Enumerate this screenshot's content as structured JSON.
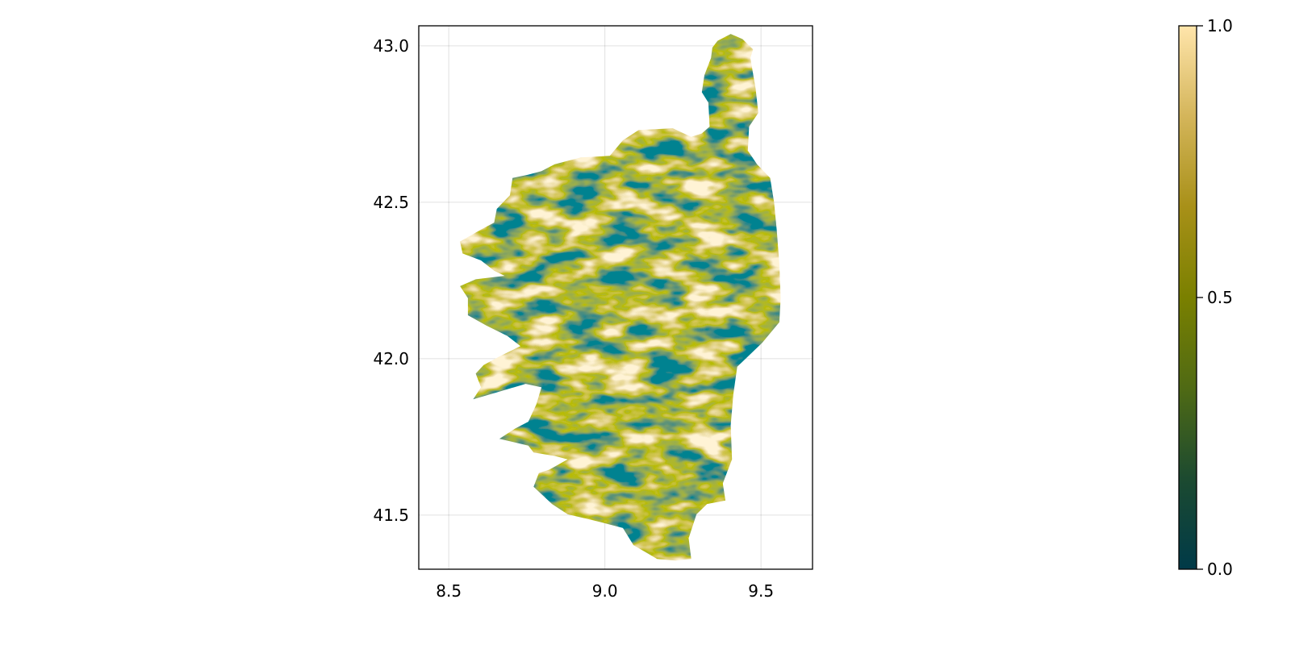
{
  "chart_data": {
    "type": "heatmap",
    "title": "",
    "xlabel": "",
    "ylabel": "",
    "xlim": [
      8.404,
      9.665
    ],
    "ylim": [
      41.327,
      43.064
    ],
    "x_ticks": [
      {
        "value": 8.5,
        "label": "8.5"
      },
      {
        "value": 9.0,
        "label": "9.0"
      },
      {
        "value": 9.5,
        "label": "9.5"
      }
    ],
    "y_ticks": [
      {
        "value": 41.5,
        "label": "41.5"
      },
      {
        "value": 42.0,
        "label": "42.0"
      },
      {
        "value": 42.5,
        "label": "42.5"
      },
      {
        "value": 43.0,
        "label": "43.0"
      }
    ],
    "grid": true,
    "values_description_visible": false,
    "colorbar": {
      "position": "right",
      "range": [
        0.0,
        1.0
      ],
      "ticks": [
        {
          "value": 0.0,
          "label": "0.0"
        },
        {
          "value": 0.5,
          "label": "0.5"
        },
        {
          "value": 1.0,
          "label": "1.0"
        }
      ],
      "colormap": [
        "#003a48",
        "#1c4a30",
        "#4f6a14",
        "#7a8000",
        "#a89018",
        "#d4b55a",
        "#ffe5ab"
      ]
    }
  }
}
